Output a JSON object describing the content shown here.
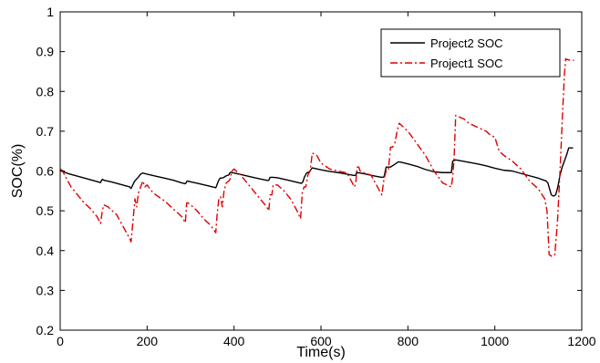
{
  "chart_data": {
    "type": "line",
    "title": "",
    "xlabel": "Time(s)",
    "ylabel": "SOC(%)",
    "xlim": [
      0,
      1200
    ],
    "ylim": [
      0.2,
      1.0
    ],
    "xticks": [
      0,
      200,
      400,
      600,
      800,
      1000,
      1200
    ],
    "yticks": [
      0.2,
      0.3,
      0.4,
      0.5,
      0.6,
      0.7,
      0.8,
      0.9,
      1.0
    ],
    "xtick_labels": [
      "0",
      "200",
      "400",
      "600",
      "800",
      "1000",
      "1200"
    ],
    "ytick_labels": [
      "0.2",
      "0.3",
      "0.4",
      "0.5",
      "0.6",
      "0.7",
      "0.8",
      "0.9",
      "1"
    ],
    "grid": false,
    "legend_position": "top-right",
    "series": [
      {
        "name": "Project2 SOC",
        "color": "#000000",
        "style": "solid",
        "x": [
          0,
          3,
          20,
          40,
          60,
          80,
          93,
          95,
          97,
          100,
          120,
          140,
          160,
          163,
          167,
          171,
          180,
          185,
          190,
          200,
          220,
          240,
          260,
          280,
          288,
          290,
          292,
          300,
          320,
          340,
          358,
          360,
          364,
          368,
          375,
          382,
          388,
          390,
          393,
          400,
          420,
          440,
          460,
          478,
          480,
          483,
          490,
          500,
          520,
          540,
          555,
          558,
          562,
          567,
          573,
          580,
          600,
          620,
          640,
          660,
          675,
          680,
          682,
          690,
          700,
          720,
          740,
          745,
          750,
          760,
          770,
          778,
          785,
          800,
          820,
          840,
          860,
          880,
          900,
          903,
          910,
          920,
          940,
          960,
          980,
          1000,
          1020,
          1040,
          1060,
          1080,
          1100,
          1118,
          1122,
          1130,
          1135,
          1140,
          1145,
          1150,
          1155,
          1160,
          1165,
          1170,
          1180
        ],
        "y": [
          0.6,
          0.6,
          0.593,
          0.587,
          0.581,
          0.575,
          0.571,
          0.576,
          0.579,
          0.577,
          0.572,
          0.566,
          0.56,
          0.556,
          0.565,
          0.574,
          0.585,
          0.592,
          0.595,
          0.592,
          0.587,
          0.582,
          0.577,
          0.57,
          0.568,
          0.571,
          0.575,
          0.573,
          0.568,
          0.563,
          0.558,
          0.563,
          0.575,
          0.582,
          0.583,
          0.588,
          0.59,
          0.595,
          0.597,
          0.595,
          0.59,
          0.585,
          0.58,
          0.576,
          0.577,
          0.584,
          0.584,
          0.583,
          0.578,
          0.573,
          0.569,
          0.572,
          0.585,
          0.595,
          0.598,
          0.608,
          0.603,
          0.599,
          0.596,
          0.592,
          0.589,
          0.589,
          0.596,
          0.595,
          0.593,
          0.588,
          0.584,
          0.585,
          0.61,
          0.61,
          0.617,
          0.623,
          0.622,
          0.618,
          0.612,
          0.604,
          0.598,
          0.596,
          0.596,
          0.625,
          0.628,
          0.626,
          0.622,
          0.618,
          0.613,
          0.607,
          0.602,
          0.6,
          0.594,
          0.588,
          0.582,
          0.575,
          0.57,
          0.54,
          0.537,
          0.54,
          0.56,
          0.59,
          0.61,
          0.625,
          0.64,
          0.658,
          0.658
        ]
      },
      {
        "name": "Project1 SOC",
        "color": "#dd0000",
        "style": "dashdot",
        "x": [
          0,
          5,
          15,
          25,
          40,
          55,
          70,
          85,
          93,
          97,
          100,
          110,
          120,
          130,
          140,
          150,
          160,
          163,
          168,
          172,
          176,
          180,
          185,
          190,
          195,
          200,
          210,
          220,
          240,
          260,
          280,
          288,
          291,
          294,
          300,
          315,
          330,
          345,
          358,
          361,
          365,
          369,
          373,
          377,
          382,
          388,
          391,
          395,
          400,
          415,
          430,
          445,
          460,
          475,
          480,
          483,
          487,
          490,
          500,
          515,
          530,
          545,
          553,
          557,
          561,
          565,
          570,
          575,
          580,
          590,
          600,
          620,
          640,
          660,
          677,
          680,
          683,
          687,
          690,
          700,
          715,
          730,
          740,
          745,
          750,
          755,
          760,
          765,
          770,
          775,
          780,
          790,
          800,
          820,
          840,
          860,
          880,
          900,
          903,
          906,
          910,
          920,
          930,
          940,
          960,
          980,
          990,
          1000,
          1010,
          1020,
          1040,
          1060,
          1080,
          1100,
          1115,
          1120,
          1125,
          1132,
          1138,
          1144,
          1150,
          1156,
          1160,
          1163,
          1167,
          1175,
          1182
        ],
        "y": [
          0.605,
          0.601,
          0.58,
          0.56,
          0.54,
          0.52,
          0.505,
          0.485,
          0.468,
          0.5,
          0.515,
          0.51,
          0.5,
          0.49,
          0.47,
          0.45,
          0.43,
          0.422,
          0.48,
          0.53,
          0.51,
          0.545,
          0.56,
          0.575,
          0.56,
          0.565,
          0.55,
          0.54,
          0.525,
          0.505,
          0.485,
          0.47,
          0.52,
          0.52,
          0.515,
          0.5,
          0.48,
          0.465,
          0.445,
          0.49,
          0.53,
          0.535,
          0.51,
          0.55,
          0.57,
          0.575,
          0.58,
          0.6,
          0.605,
          0.59,
          0.57,
          0.55,
          0.53,
          0.51,
          0.5,
          0.54,
          0.54,
          0.565,
          0.565,
          0.55,
          0.53,
          0.5,
          0.48,
          0.545,
          0.56,
          0.56,
          0.59,
          0.6,
          0.645,
          0.64,
          0.62,
          0.605,
          0.6,
          0.595,
          0.56,
          0.57,
          0.61,
          0.61,
          0.6,
          0.595,
          0.59,
          0.56,
          0.54,
          0.58,
          0.6,
          0.6,
          0.66,
          0.66,
          0.67,
          0.7,
          0.72,
          0.71,
          0.7,
          0.67,
          0.64,
          0.6,
          0.57,
          0.56,
          0.585,
          0.625,
          0.74,
          0.735,
          0.73,
          0.72,
          0.71,
          0.7,
          0.69,
          0.685,
          0.65,
          0.64,
          0.625,
          0.605,
          0.575,
          0.555,
          0.53,
          0.5,
          0.39,
          0.385,
          0.39,
          0.47,
          0.6,
          0.75,
          0.84,
          0.882,
          0.88,
          0.878,
          0.878
        ]
      }
    ]
  }
}
